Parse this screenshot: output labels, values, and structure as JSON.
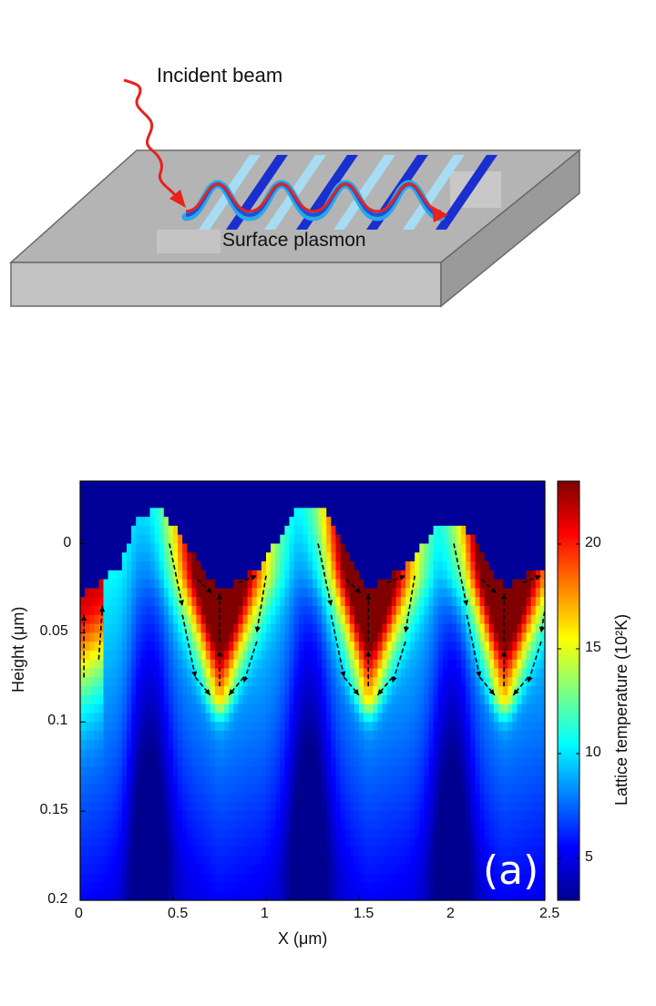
{
  "schematic": {
    "incident_label": "Incident beam",
    "plasmon_label": "Surface plasmon",
    "colors": {
      "slab_top": "#b4b4b4",
      "slab_front": "#c2c2c2",
      "slab_side": "#9a9a9a",
      "beam": "#e8221c",
      "grating_dark": "#1a2fd0",
      "grating_light": "#a7dcf2"
    }
  },
  "chart_data": {
    "type": "heatmap",
    "title": "",
    "xlabel": "X (μm)",
    "ylabel": "Height (μm)",
    "colorbar_label": "Lattice temperature (10²K)",
    "xlim": [
      0,
      2.5
    ],
    "ylim": [
      -0.035,
      0.2
    ],
    "y_axis_inverted": true,
    "x_ticks": [
      "0",
      "0.5",
      "1",
      "1.5",
      "2",
      "2.5"
    ],
    "y_ticks": [
      "0",
      "0.05",
      "0.1",
      "0.15",
      "0.2"
    ],
    "colorbar_ticks": [
      "5",
      "10",
      "15",
      "20"
    ],
    "colorbar_range": [
      3,
      23
    ],
    "colormap": "jet",
    "panel_label": "(a)",
    "surface_profile": {
      "description_x": [
        0,
        0.22,
        0.3,
        0.44,
        0.5,
        0.75,
        0.98,
        1.17,
        1.3,
        1.55,
        1.76,
        1.94,
        2.06,
        2.28,
        2.5
      ],
      "height": [
        0.03,
        0.012,
        -0.015,
        -0.02,
        -0.01,
        0.027,
        0.012,
        -0.02,
        -0.02,
        0.025,
        0.012,
        -0.012,
        -0.012,
        0.025,
        0.012
      ]
    },
    "hot_spots": [
      {
        "x": 0.75,
        "depth_min": 0.025,
        "depth_max": 0.085,
        "peak_temp": 22
      },
      {
        "x": 1.55,
        "depth_min": 0.025,
        "depth_max": 0.085,
        "peak_temp": 22
      },
      {
        "x": 2.28,
        "depth_min": 0.025,
        "depth_max": 0.085,
        "peak_temp": 22
      }
    ],
    "background_temp": 4
  }
}
